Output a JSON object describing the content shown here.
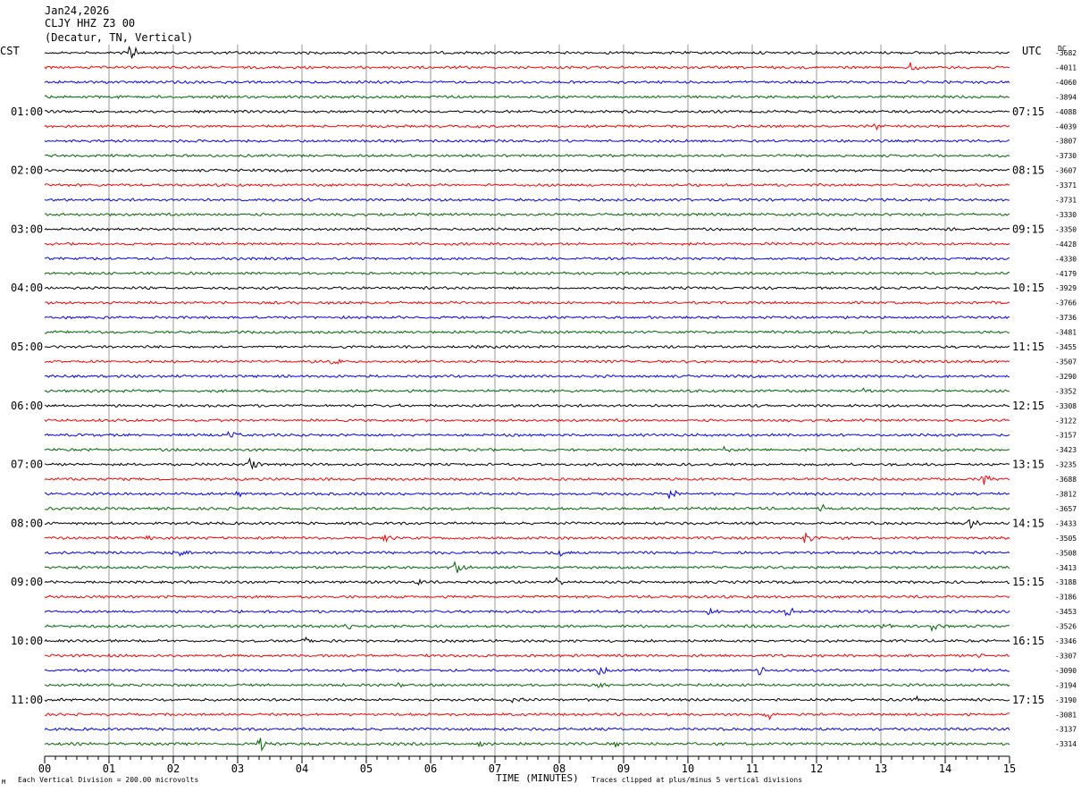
{
  "header": {
    "date": "Jan24,2026",
    "station": "CLJY HHZ Z3 00",
    "location": "(Decatur, TN, Vertical)"
  },
  "left_timezone": "CST",
  "right_timezone": "UTC",
  "dc_label": "DC",
  "left_hour_labels": [
    "01:00",
    "02:00",
    "03:00",
    "04:00",
    "05:00",
    "06:00",
    "07:00",
    "08:00",
    "09:00",
    "10:00",
    "11:00"
  ],
  "right_hour_labels": [
    "07:15",
    "08:15",
    "09:15",
    "10:15",
    "11:15",
    "12:15",
    "13:15",
    "14:15",
    "15:15",
    "16:15",
    "17:15"
  ],
  "dc_offsets": [
    "-3682",
    "-4011",
    "-4060",
    "-3894",
    "-4088",
    "-4039",
    "-3807",
    "-3730",
    "-3607",
    "-3371",
    "-3731",
    "-3330",
    "-3350",
    "-4428",
    "-4330",
    "-4179",
    "-3929",
    "-3766",
    "-3736",
    "-3481",
    "-3455",
    "-3507",
    "-3290",
    "-3352",
    "-3308",
    "-3122",
    "-3157",
    "-3423",
    "-3235",
    "-3688",
    "-3812",
    "-3657",
    "-3433",
    "-3505",
    "-3508",
    "-3413",
    "-3188",
    "-3186",
    "-3453",
    "-3526",
    "-3346",
    "-3307",
    "-3090",
    "-3194",
    "-3190",
    "-3081",
    "-3137",
    "-3314"
  ],
  "x_ticks": [
    "00",
    "01",
    "02",
    "03",
    "04",
    "05",
    "06",
    "07",
    "08",
    "09",
    "10",
    "11",
    "12",
    "13",
    "14",
    "15"
  ],
  "footer": {
    "scale_note": "Each Vertical Division =  200.00 microvolts",
    "axis_title": "TIME (MINUTES)",
    "clip_note": "Traces clipped at plus/minus 5 vertical divisions",
    "corner_mark": "M"
  },
  "colors": {
    "trace_cycle": [
      "#000000",
      "#ff0000",
      "#0000ff",
      "#006600"
    ],
    "grid": "#808080"
  },
  "chart_data": {
    "type": "line",
    "title": "",
    "xlabel": "TIME (MINUTES)",
    "ylabel": "",
    "xlim": [
      0,
      15
    ],
    "trace_count": 48,
    "minutes_per_trace": 15,
    "events": [
      {
        "trace": 0,
        "minute": 1.35,
        "amplitude": 12
      },
      {
        "trace": 1,
        "minute": 13.5,
        "amplitude": 6
      },
      {
        "trace": 5,
        "minute": 6.7,
        "amplitude": 6
      },
      {
        "trace": 5,
        "minute": 12.9,
        "amplitude": 5
      },
      {
        "trace": 21,
        "minute": 4.5,
        "amplitude": 4
      },
      {
        "trace": 23,
        "minute": 12.7,
        "amplitude": 3
      },
      {
        "trace": 26,
        "minute": 2.9,
        "amplitude": 7
      },
      {
        "trace": 27,
        "minute": 10.6,
        "amplitude": 5
      },
      {
        "trace": 28,
        "minute": 3.2,
        "amplitude": 9
      },
      {
        "trace": 29,
        "minute": 14.6,
        "amplitude": 7
      },
      {
        "trace": 30,
        "minute": 3.0,
        "amplitude": 4
      },
      {
        "trace": 30,
        "minute": 9.75,
        "amplitude": 7
      },
      {
        "trace": 31,
        "minute": 12.1,
        "amplitude": 5
      },
      {
        "trace": 32,
        "minute": 14.4,
        "amplitude": 5
      },
      {
        "trace": 33,
        "minute": 1.6,
        "amplitude": 3
      },
      {
        "trace": 33,
        "minute": 5.3,
        "amplitude": 4
      },
      {
        "trace": 33,
        "minute": 11.85,
        "amplitude": 8
      },
      {
        "trace": 34,
        "minute": 1.9,
        "amplitude": 7
      },
      {
        "trace": 34,
        "minute": 2.15,
        "amplitude": 4
      },
      {
        "trace": 34,
        "minute": 8.0,
        "amplitude": 6
      },
      {
        "trace": 35,
        "minute": 6.4,
        "amplitude": 8
      },
      {
        "trace": 36,
        "minute": 5.8,
        "amplitude": 4
      },
      {
        "trace": 36,
        "minute": 8.0,
        "amplitude": 4
      },
      {
        "trace": 38,
        "minute": 10.3,
        "amplitude": 6
      },
      {
        "trace": 38,
        "minute": 11.55,
        "amplitude": 6
      },
      {
        "trace": 39,
        "minute": 4.7,
        "amplitude": 3
      },
      {
        "trace": 39,
        "minute": 13.05,
        "amplitude": 4
      },
      {
        "trace": 39,
        "minute": 13.8,
        "amplitude": 6
      },
      {
        "trace": 40,
        "minute": 4.05,
        "amplitude": 7
      },
      {
        "trace": 41,
        "minute": 13.45,
        "amplitude": 3
      },
      {
        "trace": 41,
        "minute": 14.55,
        "amplitude": 5
      },
      {
        "trace": 42,
        "minute": 8.65,
        "amplitude": 5
      },
      {
        "trace": 42,
        "minute": 11.15,
        "amplitude": 5
      },
      {
        "trace": 43,
        "minute": 5.55,
        "amplitude": 3
      },
      {
        "trace": 43,
        "minute": 8.65,
        "amplitude": 4
      },
      {
        "trace": 44,
        "minute": 7.3,
        "amplitude": 3
      },
      {
        "trace": 44,
        "minute": 13.55,
        "amplitude": 3
      },
      {
        "trace": 45,
        "minute": 11.25,
        "amplitude": 6
      },
      {
        "trace": 47,
        "minute": 3.35,
        "amplitude": 8
      },
      {
        "trace": 47,
        "minute": 6.8,
        "amplitude": 3
      },
      {
        "trace": 47,
        "minute": 8.9,
        "amplitude": 3
      }
    ]
  }
}
